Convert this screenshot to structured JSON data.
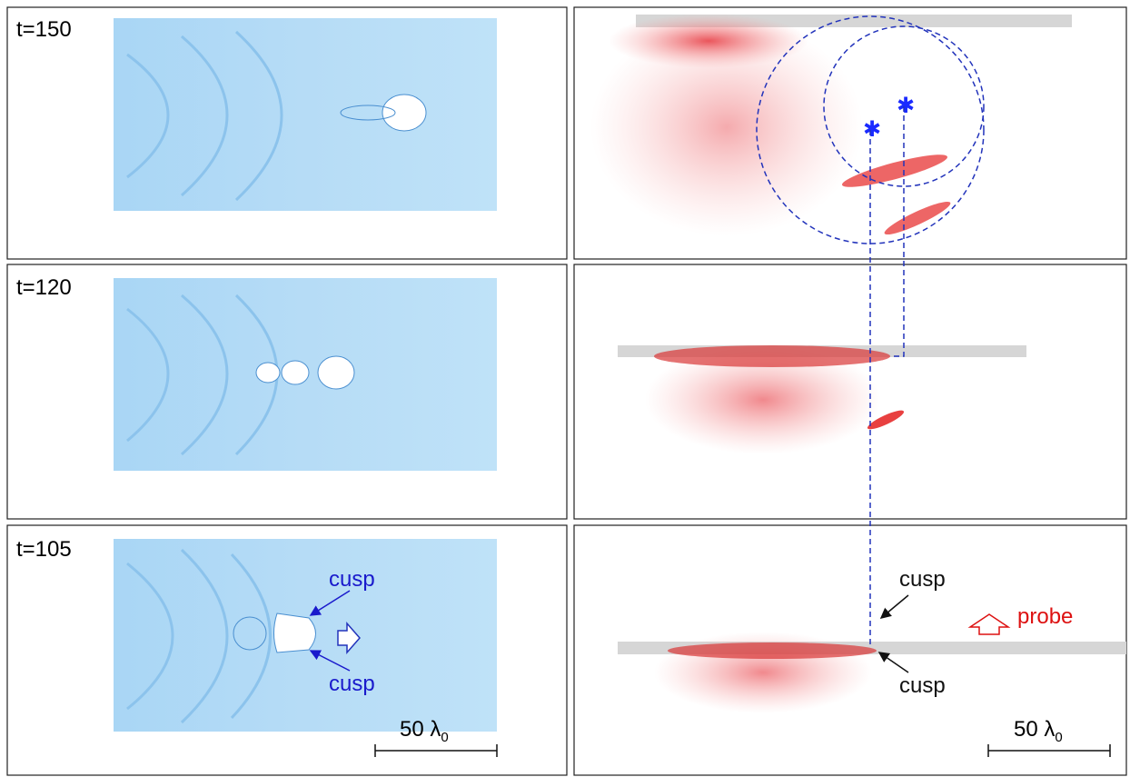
{
  "panels": [
    {
      "label": "t=150"
    },
    {
      "label": "t=120"
    },
    {
      "label": "t=105"
    }
  ],
  "annotations": {
    "cusp_labels": [
      "cusp",
      "cusp",
      "cusp",
      "cusp"
    ],
    "probe": "probe"
  },
  "scale_bars": [
    {
      "text": "50 λ",
      "subscript": "0"
    },
    {
      "text": "50 λ",
      "subscript": "0"
    }
  ]
}
